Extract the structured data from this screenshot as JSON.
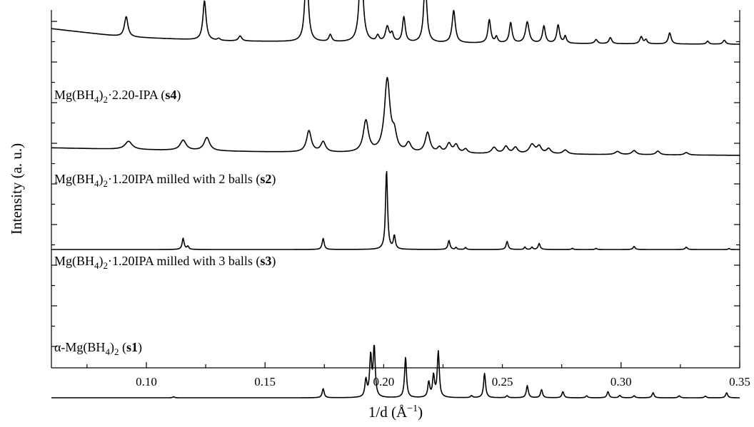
{
  "chart_data": {
    "type": "line",
    "xlabel": "1/d (Å",
    "xlabel_sup": "−1",
    "xlabel_end": ")",
    "ylabel": "Intensity (a. u.)",
    "xlim": [
      0.06,
      0.35
    ],
    "x_ticks": [
      "0.10",
      "0.15",
      "0.20",
      "0.25",
      "0.30",
      "0.35"
    ],
    "grid": false,
    "legend": "none",
    "series": [
      {
        "name": "Mg(BH4)2·2.20-IPA (s4)",
        "label": {
          "prefix": "Mg(BH",
          "sub1": "4",
          "mid": ")",
          "sub2": "2",
          "suffix": "·2.20-IPA (",
          "bold": "s4",
          "end": ")"
        },
        "baseline": [
          [
            0.06,
            3.15
          ],
          [
            0.09,
            2.75
          ],
          [
            0.13,
            2.55
          ],
          [
            0.2,
            2.45
          ],
          [
            0.35,
            2.38
          ]
        ],
        "peaks": [
          {
            "x": 0.0915,
            "h": 1.0,
            "w": 0.0009
          },
          {
            "x": 0.1245,
            "h": 1.95,
            "w": 0.0008
          },
          {
            "x": 0.1305,
            "h": 0.1,
            "w": 0.0007
          },
          {
            "x": 0.1395,
            "h": 0.25,
            "w": 0.0008
          },
          {
            "x": 0.1675,
            "h": 4.0,
            "w": 0.0008
          },
          {
            "x": 0.1775,
            "h": 0.35,
            "w": 0.0007
          },
          {
            "x": 0.1905,
            "h": 4.35,
            "w": 0.0009
          },
          {
            "x": 0.1975,
            "h": 0.3,
            "w": 0.0007
          },
          {
            "x": 0.2015,
            "h": 0.75,
            "w": 0.0009
          },
          {
            "x": 0.2035,
            "h": 0.4,
            "w": 0.0007
          },
          {
            "x": 0.2085,
            "h": 1.25,
            "w": 0.0007
          },
          {
            "x": 0.2175,
            "h": 3.0,
            "w": 0.0008
          },
          {
            "x": 0.2295,
            "h": 1.6,
            "w": 0.0008
          },
          {
            "x": 0.2445,
            "h": 1.15,
            "w": 0.0007
          },
          {
            "x": 0.2475,
            "h": 0.3,
            "w": 0.0006
          },
          {
            "x": 0.2535,
            "h": 1.0,
            "w": 0.0007
          },
          {
            "x": 0.2605,
            "h": 1.05,
            "w": 0.0009
          },
          {
            "x": 0.2675,
            "h": 0.85,
            "w": 0.0007
          },
          {
            "x": 0.2735,
            "h": 0.9,
            "w": 0.0007
          },
          {
            "x": 0.2765,
            "h": 0.35,
            "w": 0.0006
          },
          {
            "x": 0.2895,
            "h": 0.2,
            "w": 0.0007
          },
          {
            "x": 0.2955,
            "h": 0.3,
            "w": 0.0007
          },
          {
            "x": 0.3085,
            "h": 0.35,
            "w": 0.0007
          },
          {
            "x": 0.3105,
            "h": 0.2,
            "w": 0.0006
          },
          {
            "x": 0.3205,
            "h": 0.55,
            "w": 0.0007
          },
          {
            "x": 0.3365,
            "h": 0.15,
            "w": 0.0006
          },
          {
            "x": 0.3435,
            "h": 0.2,
            "w": 0.0007
          }
        ]
      },
      {
        "name": "Mg(BH4)2·1.20IPA milled with 2 balls (s2)",
        "label": {
          "prefix": "Mg(BH",
          "sub1": "4",
          "mid": ")",
          "sub2": "2",
          "suffix": "·1.20IPA milled with 2 balls (",
          "bold": "s2",
          "end": ")"
        },
        "baseline": [
          [
            0.06,
            1.25
          ],
          [
            0.1,
            1.15
          ],
          [
            0.15,
            1.05
          ],
          [
            0.2,
            0.98
          ],
          [
            0.35,
            0.88
          ]
        ],
        "peaks": [
          {
            "x": 0.0925,
            "h": 0.4,
            "w": 0.0018
          },
          {
            "x": 0.1155,
            "h": 0.5,
            "w": 0.0015
          },
          {
            "x": 0.1255,
            "h": 0.65,
            "w": 0.0014
          },
          {
            "x": 0.1685,
            "h": 1.05,
            "w": 0.0012
          },
          {
            "x": 0.1745,
            "h": 0.5,
            "w": 0.0012
          },
          {
            "x": 0.1925,
            "h": 1.55,
            "w": 0.0013
          },
          {
            "x": 0.2015,
            "h": 3.6,
            "w": 0.0014
          },
          {
            "x": 0.2045,
            "h": 0.75,
            "w": 0.0011
          },
          {
            "x": 0.2105,
            "h": 0.45,
            "w": 0.0012
          },
          {
            "x": 0.2185,
            "h": 1.0,
            "w": 0.0012
          },
          {
            "x": 0.2235,
            "h": 0.25,
            "w": 0.001
          },
          {
            "x": 0.2275,
            "h": 0.45,
            "w": 0.0011
          },
          {
            "x": 0.2305,
            "h": 0.4,
            "w": 0.0011
          },
          {
            "x": 0.2345,
            "h": 0.2,
            "w": 0.001
          },
          {
            "x": 0.2465,
            "h": 0.3,
            "w": 0.0012
          },
          {
            "x": 0.2515,
            "h": 0.35,
            "w": 0.0011
          },
          {
            "x": 0.2555,
            "h": 0.3,
            "w": 0.0011
          },
          {
            "x": 0.2625,
            "h": 0.45,
            "w": 0.0014
          },
          {
            "x": 0.2655,
            "h": 0.35,
            "w": 0.0011
          },
          {
            "x": 0.2695,
            "h": 0.25,
            "w": 0.0011
          },
          {
            "x": 0.2765,
            "h": 0.2,
            "w": 0.0012
          },
          {
            "x": 0.2985,
            "h": 0.15,
            "w": 0.0012
          },
          {
            "x": 0.3055,
            "h": 0.2,
            "w": 0.0011
          },
          {
            "x": 0.3155,
            "h": 0.18,
            "w": 0.001
          },
          {
            "x": 0.3275,
            "h": 0.12,
            "w": 0.001
          }
        ]
      },
      {
        "name": "Mg(BH4)2·1.20IPA milled with 3 balls (s3)",
        "label": {
          "prefix": "Mg(BH",
          "sub1": "4",
          "mid": ")",
          "sub2": "2",
          "suffix": "·1.20IPA milled with 3 balls (",
          "bold": "s3",
          "end": ")"
        },
        "baseline": [
          [
            0.06,
            0.0
          ],
          [
            0.35,
            0.0
          ]
        ],
        "peaks": [
          {
            "x": 0.1155,
            "h": 0.55,
            "w": 0.0005
          },
          {
            "x": 0.1175,
            "h": 0.15,
            "w": 0.0005
          },
          {
            "x": 0.1745,
            "h": 0.55,
            "w": 0.0005
          },
          {
            "x": 0.2012,
            "h": 3.9,
            "w": 0.0005
          },
          {
            "x": 0.2045,
            "h": 0.65,
            "w": 0.0005
          },
          {
            "x": 0.2275,
            "h": 0.45,
            "w": 0.0005
          },
          {
            "x": 0.2305,
            "h": 0.1,
            "w": 0.0004
          },
          {
            "x": 0.2345,
            "h": 0.1,
            "w": 0.0004
          },
          {
            "x": 0.252,
            "h": 0.4,
            "w": 0.0005
          },
          {
            "x": 0.2595,
            "h": 0.12,
            "w": 0.0004
          },
          {
            "x": 0.2625,
            "h": 0.12,
            "w": 0.0004
          },
          {
            "x": 0.2655,
            "h": 0.3,
            "w": 0.0005
          },
          {
            "x": 0.2795,
            "h": 0.06,
            "w": 0.0004
          },
          {
            "x": 0.2895,
            "h": 0.06,
            "w": 0.0004
          },
          {
            "x": 0.3055,
            "h": 0.15,
            "w": 0.0005
          },
          {
            "x": 0.3275,
            "h": 0.12,
            "w": 0.0005
          },
          {
            "x": 0.3455,
            "h": 0.05,
            "w": 0.0004
          }
        ]
      },
      {
        "name": "α-Mg(BH4)2 (s1)",
        "label": {
          "prefix": "α-Mg(BH",
          "sub1": "4",
          "mid": ")",
          "sub2": "2",
          "suffix": " (",
          "bold": "s1",
          "end": ")"
        },
        "baseline": [
          [
            0.06,
            -3.3
          ],
          [
            0.35,
            -3.3
          ]
        ],
        "peaks": [
          {
            "x": 0.1115,
            "h": 0.05,
            "w": 0.0005
          },
          {
            "x": 0.1745,
            "h": 0.45,
            "w": 0.0005
          },
          {
            "x": 0.1925,
            "h": 0.85,
            "w": 0.0005
          },
          {
            "x": 0.1945,
            "h": 2.0,
            "w": 0.0005
          },
          {
            "x": 0.196,
            "h": 2.45,
            "w": 0.0005
          },
          {
            "x": 0.2092,
            "h": 2.0,
            "w": 0.0005
          },
          {
            "x": 0.219,
            "h": 0.75,
            "w": 0.0005
          },
          {
            "x": 0.221,
            "h": 1.05,
            "w": 0.0005
          },
          {
            "x": 0.223,
            "h": 2.25,
            "w": 0.0005
          },
          {
            "x": 0.237,
            "h": 0.1,
            "w": 0.0005
          },
          {
            "x": 0.2425,
            "h": 1.2,
            "w": 0.0005
          },
          {
            "x": 0.252,
            "h": 0.1,
            "w": 0.0005
          },
          {
            "x": 0.2605,
            "h": 0.6,
            "w": 0.0005
          },
          {
            "x": 0.2665,
            "h": 0.4,
            "w": 0.0005
          },
          {
            "x": 0.2755,
            "h": 0.3,
            "w": 0.0005
          },
          {
            "x": 0.2855,
            "h": 0.1,
            "w": 0.0005
          },
          {
            "x": 0.2945,
            "h": 0.3,
            "w": 0.0005
          },
          {
            "x": 0.2995,
            "h": 0.12,
            "w": 0.0005
          },
          {
            "x": 0.3055,
            "h": 0.1,
            "w": 0.0005
          },
          {
            "x": 0.3135,
            "h": 0.25,
            "w": 0.0005
          },
          {
            "x": 0.3245,
            "h": 0.1,
            "w": 0.0005
          },
          {
            "x": 0.3355,
            "h": 0.08,
            "w": 0.0005
          },
          {
            "x": 0.3445,
            "h": 0.25,
            "w": 0.0005
          }
        ]
      }
    ]
  }
}
